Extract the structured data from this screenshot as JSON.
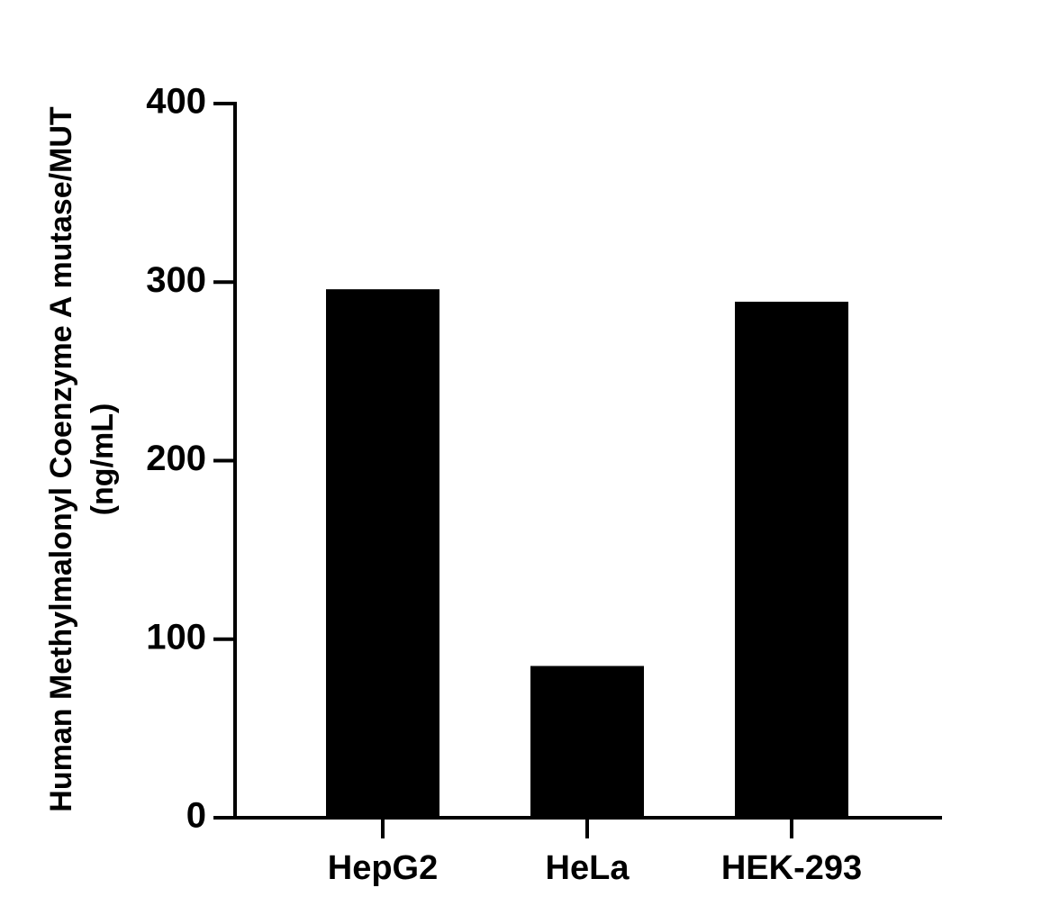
{
  "chart_data": {
    "type": "bar",
    "ylabel": [
      "Human Methylmalonyl Coenzyme A mutase/MUT",
      "(ng/mL)"
    ],
    "categories": [
      "HepG2",
      "HeLa",
      "HEK-293"
    ],
    "values": [
      296,
      85,
      289
    ],
    "color": "#000000",
    "ylim": [
      0,
      400
    ],
    "yticks": [
      0,
      100,
      200,
      300,
      400
    ],
    "grid": false
  }
}
